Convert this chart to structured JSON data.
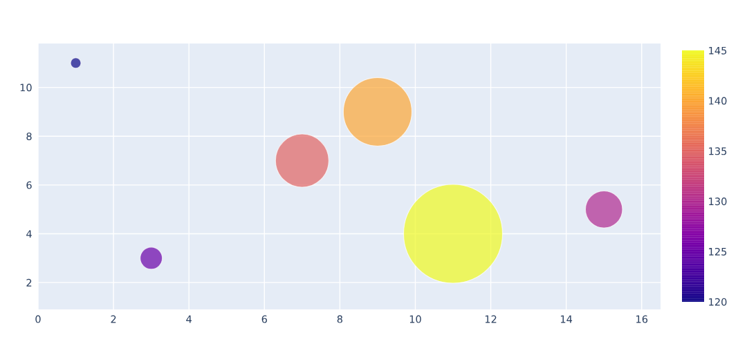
{
  "chart_data": {
    "type": "bubble",
    "x": [
      1,
      3,
      7,
      9,
      11,
      15
    ],
    "values": [
      11,
      3,
      7,
      9,
      4,
      5
    ],
    "sizes": [
      0.011,
      0.05,
      0.29,
      0.48,
      1,
      0.14
    ],
    "cvalues": [
      120,
      125,
      135,
      140,
      145,
      130
    ],
    "clim": [
      120,
      145
    ],
    "cticks": [
      120,
      125,
      130,
      135,
      140,
      145
    ],
    "xlim": [
      0,
      16.5
    ],
    "xticks": [
      0,
      2,
      4,
      6,
      8,
      10,
      12,
      14,
      16
    ],
    "ylim": [
      0.9,
      11.8
    ],
    "yticks": [
      2,
      4,
      6,
      8,
      10
    ],
    "grid": true,
    "marker": "circle"
  }
}
